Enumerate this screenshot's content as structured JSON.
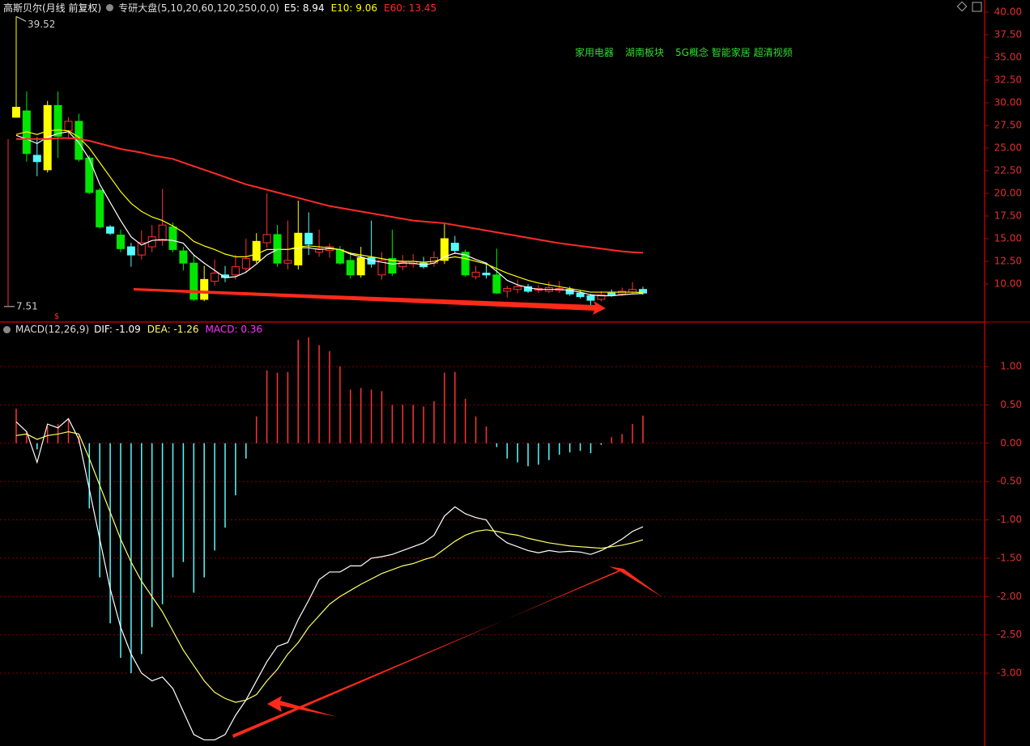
{
  "chart_data": [
    {
      "type": "candlestick",
      "title": "高斯贝尔(月线 前复权)",
      "indicator": "专研大盘(5,10,20,60,120,250,0,0)",
      "tags": [
        "家用电器",
        "湖南板块",
        "5G概念 智能家居 超清视频"
      ],
      "signal": "$",
      "ylim": [
        5.8,
        41.34
      ],
      "yticks": [
        {
          "value": 10,
          "label": "10.00"
        },
        {
          "value": 12.5,
          "label": "12.50"
        },
        {
          "value": 15,
          "label": "15.00"
        },
        {
          "value": 17.5,
          "label": "17.50"
        },
        {
          "value": 20,
          "label": "20.00"
        },
        {
          "value": 22.5,
          "label": "22.50"
        },
        {
          "value": 25,
          "label": "25.00"
        },
        {
          "value": 27.5,
          "label": "27.50"
        },
        {
          "value": 30,
          "label": "30.00"
        },
        {
          "value": 32.5,
          "label": "32.50"
        },
        {
          "value": 35,
          "label": "35.00"
        },
        {
          "value": 37.5,
          "label": "37.50"
        },
        {
          "value": 40,
          "label": "40.00"
        }
      ],
      "palette": {
        "yellow": "#ffff00",
        "green": "#00e600",
        "cyan": "#54fcfc",
        "red": "#ff3232"
      },
      "hollow": "red",
      "styles": [
        "yellow",
        "green",
        "cyan",
        "yellow",
        "green",
        "red",
        "green",
        "green",
        "green",
        "cyan",
        "green",
        "cyan",
        "red",
        "red",
        "red",
        "green",
        "green",
        "green",
        "yellow",
        "red",
        "cyan",
        "red",
        "red",
        "yellow",
        "red",
        "green",
        "red",
        "yellow",
        "cyan",
        "red",
        "red",
        "green",
        "green",
        "yellow",
        "cyan",
        "red",
        "green",
        "red",
        "red",
        "cyan",
        "red",
        "yellow",
        "cyan",
        "green",
        "red",
        "cyan",
        "green",
        "red",
        "red",
        "cyan",
        "red",
        "red",
        "red",
        "cyan",
        "cyan",
        "cyan",
        "red",
        "cyan",
        "red",
        "red",
        "cyan"
      ],
      "open": [
        28.4,
        29.1,
        24.2,
        22.6,
        29.7,
        26.9,
        27.95,
        23.9,
        20.35,
        16.3,
        15.4,
        14.1,
        13.2,
        14.1,
        14.8,
        16.3,
        13.65,
        12.3,
        8.3,
        10.3,
        11.0,
        11.0,
        11.7,
        12.6,
        14.55,
        15.45,
        12.3,
        12.1,
        15.6,
        13.5,
        13.7,
        13.8,
        12.6,
        11.0,
        12.9,
        11.0,
        12.8,
        11.9,
        12.2,
        12.3,
        12.3,
        12.6,
        14.5,
        13.5,
        10.8,
        11.2,
        11.0,
        9.2,
        9.4,
        9.7,
        9.3,
        9.2,
        9.3,
        9.4,
        9.0,
        8.7,
        8.3,
        9.0,
        8.9,
        9.1,
        9.4
      ],
      "high": [
        39.52,
        31.25,
        26.2,
        30.2,
        31.25,
        28.4,
        28.8,
        24.2,
        20.6,
        16.5,
        16.0,
        14.55,
        15.9,
        16.5,
        20.5,
        16.8,
        14.1,
        13.2,
        12.0,
        12.7,
        12.0,
        13.2,
        15.0,
        15.6,
        20.0,
        16.5,
        17.0,
        19.2,
        17.9,
        16.0,
        14.5,
        14.2,
        13.5,
        14.1,
        17.0,
        13.5,
        16.0,
        13.2,
        13.3,
        13.0,
        13.6,
        16.6,
        15.3,
        13.8,
        12.0,
        12.3,
        13.9,
        9.8,
        10.5,
        10.0,
        9.9,
        10.3,
        10.3,
        9.7,
        9.3,
        8.9,
        9.2,
        9.4,
        9.6,
        10.2,
        9.7
      ],
      "low": [
        28.4,
        23.5,
        21.9,
        22.3,
        23.9,
        26.2,
        23.5,
        19.9,
        16.1,
        15.4,
        13.5,
        11.9,
        12.7,
        13.5,
        14.2,
        13.5,
        11.5,
        8.1,
        8.1,
        9.8,
        10.2,
        10.5,
        11.2,
        12.3,
        14.0,
        11.9,
        11.6,
        11.6,
        13.2,
        13.0,
        12.9,
        12.1,
        10.6,
        10.7,
        11.8,
        10.5,
        10.9,
        11.5,
        11.8,
        11.7,
        11.9,
        12.2,
        13.3,
        10.8,
        10.5,
        10.6,
        8.9,
        8.5,
        9.0,
        9.0,
        9.0,
        9.0,
        9.0,
        8.7,
        8.4,
        7.51,
        8.1,
        8.6,
        8.7,
        8.9,
        8.8
      ],
      "close": [
        29.5,
        24.4,
        23.5,
        29.7,
        26.3,
        27.95,
        23.75,
        20.1,
        16.3,
        15.6,
        13.9,
        13.2,
        14.55,
        15.2,
        16.5,
        13.8,
        12.3,
        8.3,
        10.5,
        11.2,
        10.7,
        11.9,
        12.8,
        14.7,
        15.45,
        12.3,
        12.6,
        15.6,
        14.4,
        13.9,
        14.1,
        12.3,
        11.0,
        12.9,
        12.2,
        12.6,
        11.2,
        12.4,
        12.5,
        11.9,
        12.9,
        15.0,
        13.7,
        11.0,
        11.3,
        11.0,
        9.0,
        9.5,
        9.7,
        9.2,
        9.5,
        9.6,
        9.5,
        8.9,
        8.6,
        8.2,
        8.8,
        8.8,
        9.2,
        9.4,
        9.0
      ],
      "series": [
        {
          "label": "E5: 8.94",
          "color": "#ffffff",
          "values": [
            26.4,
            26.0,
            25.5,
            26.2,
            26.6,
            26.8,
            25.6,
            23.8,
            21.0,
            19.0,
            17.0,
            15.2,
            14.3,
            14.8,
            14.9,
            14.8,
            14.5,
            13.2,
            12.3,
            11.5,
            10.7,
            10.8,
            11.3,
            12.2,
            13.2,
            13.8,
            13.8,
            14.0,
            14.0,
            13.8,
            13.9,
            13.8,
            13.3,
            13.0,
            12.6,
            12.4,
            12.2,
            12.3,
            12.3,
            12.1,
            12.3,
            13.0,
            13.4,
            13.2,
            12.7,
            12.3,
            11.4,
            10.4,
            9.9,
            9.6,
            9.4,
            9.4,
            9.4,
            9.3,
            9.1,
            8.8,
            8.7,
            8.7,
            8.8,
            8.9,
            8.94
          ]
        },
        {
          "label": "E10: 9.06",
          "color": "#ffff00",
          "values": [
            26.5,
            26.8,
            26.5,
            26.9,
            27.0,
            26.9,
            26.2,
            25.0,
            23.4,
            21.8,
            20.2,
            18.9,
            18.0,
            17.4,
            17.0,
            16.4,
            15.7,
            14.7,
            14.2,
            13.8,
            13.3,
            13.0,
            13.0,
            13.3,
            13.8,
            13.8,
            13.8,
            14.1,
            14.2,
            14.1,
            14.0,
            13.8,
            13.4,
            13.2,
            13.0,
            12.8,
            12.6,
            12.5,
            12.5,
            12.4,
            12.5,
            12.8,
            13.0,
            12.8,
            12.5,
            12.2,
            11.7,
            11.2,
            10.8,
            10.4,
            10.1,
            9.9,
            9.7,
            9.5,
            9.3,
            9.1,
            9.1,
            9.1,
            9.1,
            9.1,
            9.06
          ]
        },
        {
          "label": "E60: 13.45",
          "color": "#ff2a2a",
          "values": [
            26.0,
            26.0,
            26.0,
            26.0,
            26.1,
            26.1,
            26.0,
            25.8,
            25.5,
            25.2,
            24.9,
            24.7,
            24.5,
            24.2,
            24.0,
            23.8,
            23.4,
            23.0,
            22.6,
            22.2,
            21.8,
            21.4,
            21.0,
            20.7,
            20.4,
            20.1,
            19.8,
            19.5,
            19.2,
            18.9,
            18.6,
            18.4,
            18.2,
            18.0,
            17.8,
            17.6,
            17.4,
            17.2,
            17.0,
            16.9,
            16.8,
            16.7,
            16.5,
            16.3,
            16.1,
            15.9,
            15.7,
            15.5,
            15.3,
            15.1,
            14.9,
            14.7,
            14.5,
            14.35,
            14.2,
            14.05,
            13.9,
            13.75,
            13.6,
            13.5,
            13.45
          ]
        }
      ]
    },
    {
      "type": "macd",
      "title": "MACD(12,26,9)",
      "ylim": [
        -3.95,
        1.56
      ],
      "yticks": [
        {
          "value": 1,
          "label": "1.00"
        },
        {
          "value": 0.5,
          "label": "0.50"
        },
        {
          "value": 0,
          "label": "0.00"
        },
        {
          "value": -0.5,
          "label": "-0.50"
        },
        {
          "value": -1,
          "label": "-1.00"
        },
        {
          "value": -1.5,
          "label": "-1.50"
        },
        {
          "value": -2,
          "label": "-2.00"
        },
        {
          "value": -2.5,
          "label": "-2.50"
        },
        {
          "value": -3,
          "label": "-3.00"
        }
      ],
      "grid": true,
      "histogram": {
        "label": "MACD: 0.36",
        "label_color": "#ff33ff",
        "up_color": "#ff3232",
        "down_color": "#54fcfc",
        "values": [
          0.45,
          0.15,
          -0.08,
          0.22,
          0.25,
          0.32,
          0.1,
          -0.85,
          -1.75,
          -2.35,
          -2.8,
          -3.0,
          -2.75,
          -2.4,
          -2.1,
          -1.75,
          -1.55,
          -1.95,
          -1.75,
          -1.4,
          -1.1,
          -0.68,
          -0.2,
          0.35,
          0.95,
          0.92,
          0.93,
          1.35,
          1.38,
          1.28,
          1.2,
          1.0,
          0.7,
          0.72,
          0.7,
          0.68,
          0.5,
          0.5,
          0.5,
          0.48,
          0.55,
          0.92,
          0.93,
          0.58,
          0.35,
          0.22,
          -0.05,
          -0.2,
          -0.25,
          -0.3,
          -0.28,
          -0.22,
          -0.15,
          -0.12,
          -0.1,
          -0.13,
          -0.02,
          0.08,
          0.12,
          0.25,
          0.36
        ]
      },
      "series": [
        {
          "label": "DIF: -1.09",
          "color": "#ffffff",
          "values": [
            0.28,
            0.15,
            -0.25,
            0.25,
            0.2,
            0.32,
            0.05,
            -0.6,
            -1.25,
            -1.9,
            -2.4,
            -2.75,
            -3.0,
            -3.1,
            -3.05,
            -3.2,
            -3.5,
            -3.8,
            -3.87,
            -3.87,
            -3.8,
            -3.55,
            -3.35,
            -3.1,
            -2.85,
            -2.65,
            -2.6,
            -2.3,
            -2.05,
            -1.78,
            -1.68,
            -1.68,
            -1.6,
            -1.6,
            -1.5,
            -1.48,
            -1.45,
            -1.4,
            -1.35,
            -1.3,
            -1.2,
            -0.95,
            -0.83,
            -0.92,
            -0.97,
            -1.0,
            -1.2,
            -1.3,
            -1.35,
            -1.4,
            -1.43,
            -1.4,
            -1.42,
            -1.41,
            -1.42,
            -1.45,
            -1.4,
            -1.33,
            -1.25,
            -1.15,
            -1.09
          ]
        },
        {
          "label": "DEA: -1.26",
          "color": "#ffff66",
          "values": [
            0.1,
            0.12,
            0.05,
            0.1,
            0.12,
            0.15,
            0.12,
            -0.2,
            -0.55,
            -0.9,
            -1.25,
            -1.55,
            -1.8,
            -2.0,
            -2.2,
            -2.45,
            -2.7,
            -2.9,
            -3.1,
            -3.25,
            -3.33,
            -3.38,
            -3.35,
            -3.28,
            -3.1,
            -2.95,
            -2.75,
            -2.6,
            -2.4,
            -2.25,
            -2.1,
            -2.0,
            -1.92,
            -1.84,
            -1.77,
            -1.7,
            -1.65,
            -1.6,
            -1.57,
            -1.52,
            -1.48,
            -1.38,
            -1.28,
            -1.2,
            -1.15,
            -1.13,
            -1.15,
            -1.18,
            -1.2,
            -1.24,
            -1.27,
            -1.3,
            -1.32,
            -1.34,
            -1.35,
            -1.36,
            -1.37,
            -1.35,
            -1.33,
            -1.3,
            -1.26
          ]
        }
      ]
    }
  ]
}
